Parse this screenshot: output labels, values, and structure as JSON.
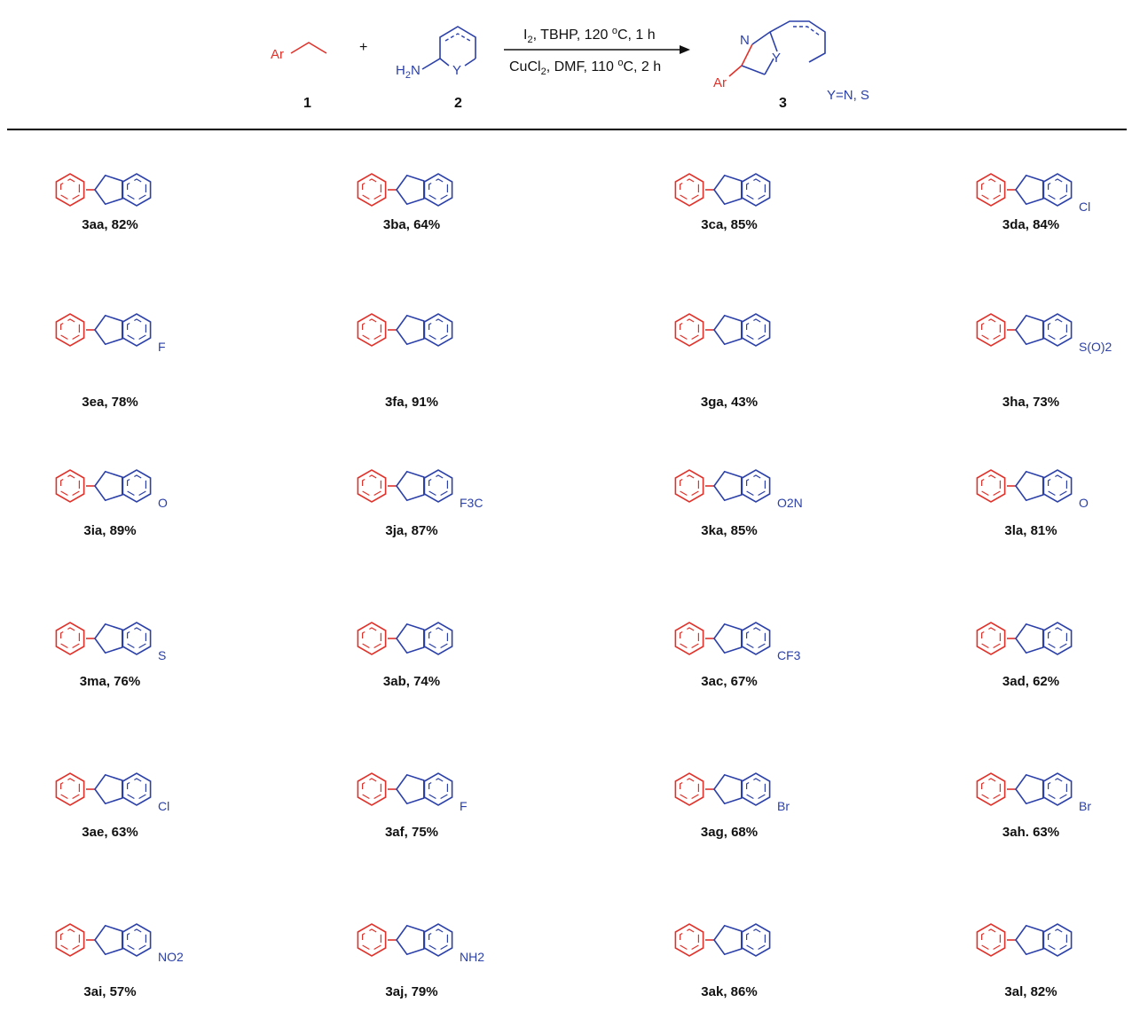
{
  "scheme": {
    "reactant1": {
      "number": "1",
      "group": "Ar"
    },
    "plus": "+",
    "reactant2": {
      "number": "2",
      "amine": "H2N",
      "hetero": "Y"
    },
    "conditions": {
      "line1": "I2, TBHP, 120 oC, 1 h",
      "line2": "CuCl2, DMF, 110 oC, 2 h"
    },
    "product": {
      "number": "3",
      "atom_n": "N",
      "hetero": "Y",
      "group": "Ar",
      "note": "Y=N, S"
    }
  },
  "colors": {
    "aryl": "#e0322a",
    "heterocycle": "#2b40a8",
    "divider": "#000000"
  },
  "compounds": [
    {
      "id": "3aa",
      "yield": "82%",
      "label": "3aa, 82%"
    },
    {
      "id": "3ba",
      "yield": "64%",
      "label": "3ba, 64%"
    },
    {
      "id": "3ca",
      "yield": "85%",
      "label": "3ca, 85%"
    },
    {
      "id": "3da",
      "yield": "84%",
      "label": "3da, 84%",
      "substituent": "Cl"
    },
    {
      "id": "3ea",
      "yield": "78%",
      "label": "3ea, 78%",
      "substituent": "F"
    },
    {
      "id": "3fa",
      "yield": "91%",
      "label": "3fa, 91%"
    },
    {
      "id": "3ga",
      "yield": "43%",
      "label": "3ga, 43%"
    },
    {
      "id": "3ha",
      "yield": "73%",
      "label": "3ha, 73%",
      "substituent": "S(O)2"
    },
    {
      "id": "3ia",
      "yield": "89%",
      "label": "3ia, 89%",
      "substituent": "O"
    },
    {
      "id": "3ja",
      "yield": "87%",
      "label": "3ja, 87%",
      "substituent": "F3C"
    },
    {
      "id": "3ka",
      "yield": "85%",
      "label": "3ka, 85%",
      "substituent": "O2N"
    },
    {
      "id": "3la",
      "yield": "81%",
      "label": "3la, 81%",
      "substituent": "O"
    },
    {
      "id": "3ma",
      "yield": "76%",
      "label": "3ma, 76%",
      "substituent": "S"
    },
    {
      "id": "3ab",
      "yield": "74%",
      "label": "3ab, 74%"
    },
    {
      "id": "3ac",
      "yield": "67%",
      "label": "3ac, 67%",
      "substituent": "CF3"
    },
    {
      "id": "3ad",
      "yield": "62%",
      "label": "3ad, 62%"
    },
    {
      "id": "3ae",
      "yield": "63%",
      "label": "3ae, 63%",
      "substituent": "Cl"
    },
    {
      "id": "3af",
      "yield": "75%",
      "label": "3af, 75%",
      "substituent": "F"
    },
    {
      "id": "3ag",
      "yield": "68%",
      "label": "3ag, 68%",
      "substituent": "Br"
    },
    {
      "id": "3ah",
      "yield": "63%",
      "label": "3ah. 63%",
      "substituent": "Br"
    },
    {
      "id": "3ai",
      "yield": "57%",
      "label": "3ai, 57%",
      "substituent": "NO2"
    },
    {
      "id": "3aj",
      "yield": "79%",
      "label": "3aj, 79%",
      "substituent": "NH2"
    },
    {
      "id": "3ak",
      "yield": "86%",
      "label": "3ak, 86%"
    },
    {
      "id": "3al",
      "yield": "82%",
      "label": "3al, 82%"
    }
  ]
}
